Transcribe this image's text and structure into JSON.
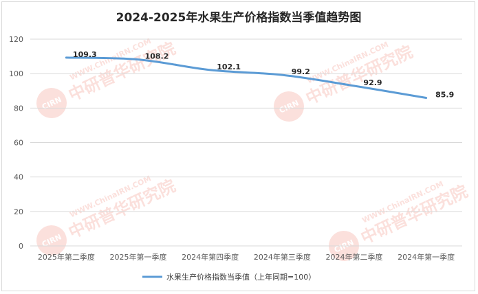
{
  "chart_data": {
    "type": "line",
    "title": "2024-2025年水果生产价格指数当季值趋势图",
    "categories": [
      "2025年第二季度",
      "2025年第一季度",
      "2024年第四季度",
      "2024年第三季度",
      "2024年第二季度",
      "2024年第一季度"
    ],
    "series": [
      {
        "name": "水果生产价格指数当季值（上年同期=100）",
        "values": [
          109.3,
          108.2,
          102.1,
          99.2,
          92.9,
          85.9
        ],
        "labels": [
          "109.3",
          "108.2",
          "102.1",
          "99.2",
          "92.9",
          "85.9"
        ],
        "color": "#5b9bd5"
      }
    ],
    "ylim": [
      0,
      120
    ],
    "yticks": [
      "0",
      "20",
      "40",
      "60",
      "80",
      "100",
      "120"
    ],
    "xlabel": "",
    "ylabel": "",
    "grid": true,
    "legend_position": "bottom"
  },
  "watermark": {
    "url": "WWW.ChinaIRN.COM",
    "badge": "CIRN",
    "name": "中研普华研究院"
  },
  "colors": {
    "axis_text": "#595959",
    "gridline": "#d9d9d9",
    "title": "#262626"
  }
}
